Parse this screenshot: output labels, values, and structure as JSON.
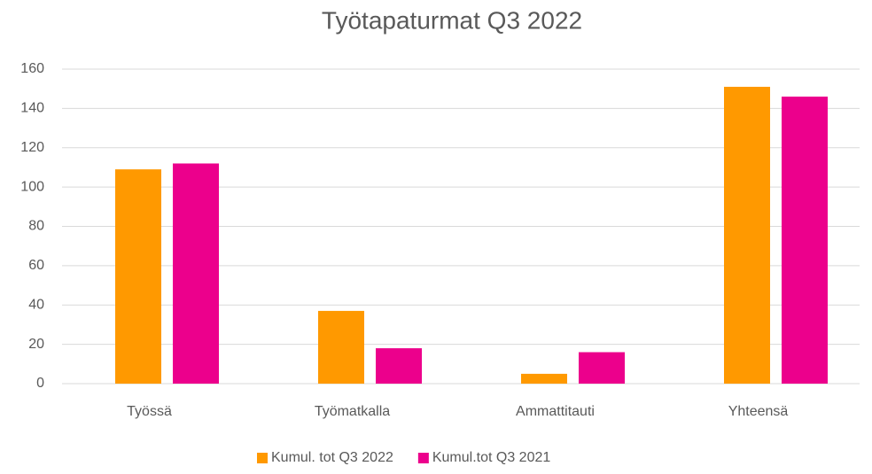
{
  "chart_data": {
    "type": "bar",
    "title": "Työtapaturmat Q3 2022",
    "categories": [
      "Työssä",
      "Työmatkalla",
      "Ammattitauti",
      "Yhteensä"
    ],
    "series": [
      {
        "name": "Kumul. tot Q3 2022",
        "color": "#ff9900",
        "values": [
          109,
          37,
          5,
          151
        ]
      },
      {
        "name": "Kumul.tot Q3 2021",
        "color": "#ec008c",
        "values": [
          112,
          18,
          16,
          146
        ]
      }
    ],
    "ylim": [
      0,
      160
    ],
    "yticks": [
      0,
      20,
      40,
      60,
      80,
      100,
      120,
      140,
      160
    ],
    "grid": true,
    "legend": "bottom"
  }
}
